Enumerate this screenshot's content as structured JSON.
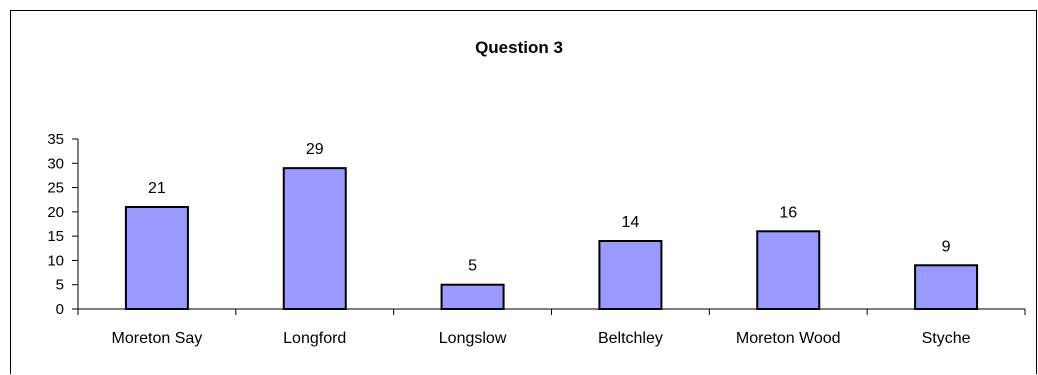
{
  "chart_data": {
    "type": "bar",
    "title": "Question 3",
    "categories": [
      "Moreton Say",
      "Longford",
      "Longslow",
      "Beltchley",
      "Moreton Wood",
      "Styche"
    ],
    "values": [
      21,
      29,
      5,
      14,
      16,
      9
    ],
    "data_labels": [
      "21",
      "29",
      "5",
      "14",
      "16",
      "9"
    ],
    "ylim": [
      0,
      35
    ],
    "y_ticks": [
      0,
      5,
      10,
      15,
      20,
      25,
      30,
      35
    ],
    "xlabel": "",
    "ylabel": "",
    "grid": false,
    "legend": "none",
    "bar_color": "#9999ff",
    "bar_border_color": "#000000"
  }
}
